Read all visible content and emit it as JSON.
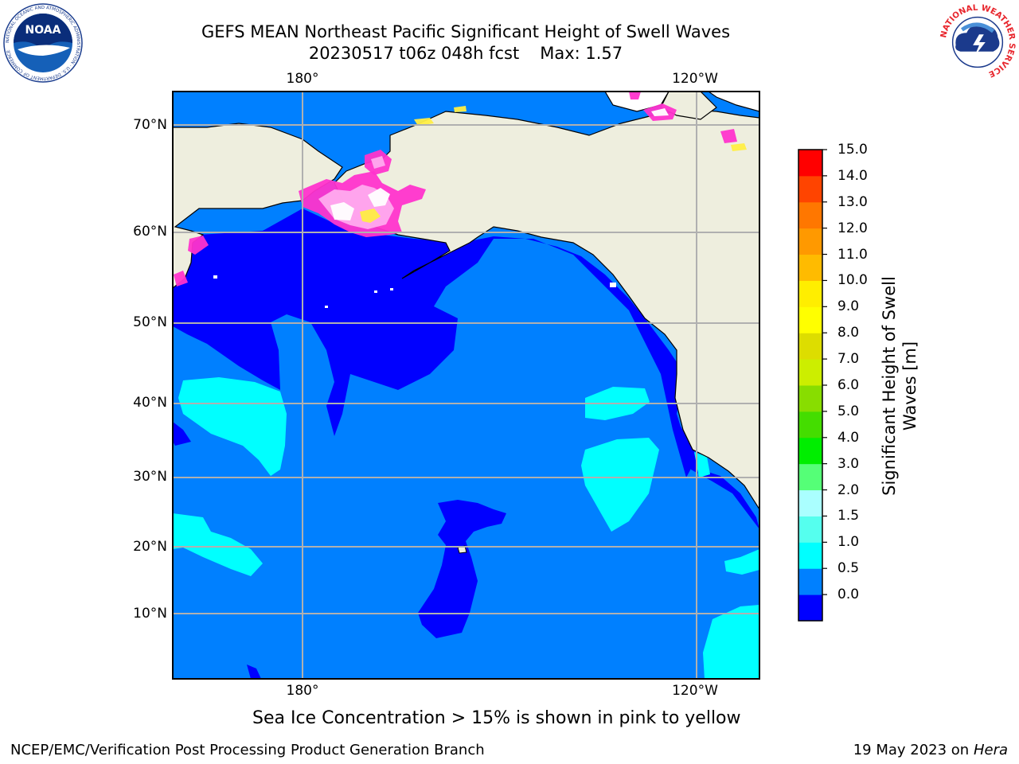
{
  "header": {
    "title_line1": "GEFS MEAN Northeast Pacific Significant Height of Swell Waves",
    "run_info": "20230517 t06z 048h fcst",
    "max_label": "Max: 1.57"
  },
  "logos": {
    "noaa": {
      "text": "NOAA",
      "ring_text": "NATIONAL OCEANIC AND ATMOSPHERIC ADMINISTRATION · U.S. DEPARTMENT OF COMMERCE"
    },
    "nws": {
      "ring_text": "NATIONAL WEATHER SERVICE"
    }
  },
  "map": {
    "lon_labels_top": [
      "180°",
      "120°W"
    ],
    "lon_labels_bottom": [
      "180°",
      "120°W"
    ],
    "lat_labels": [
      "70°N",
      "60°N",
      "50°N",
      "40°N",
      "30°N",
      "20°N",
      "10°N"
    ],
    "colors": {
      "land": "#eeeede",
      "ocean_0_0_5": "#0000ff",
      "ocean_1_0_1_5": "#0080ff",
      "ocean_1_5_2_0": "#00ffff",
      "grid": "#b0b0b0",
      "sea_ice": [
        "#ff33cc",
        "#ffaaee",
        "#ffee44"
      ]
    }
  },
  "colorbar": {
    "label": "Significant Height of Swell Waves [m]",
    "ticks": [
      "15.0",
      "14.0",
      "13.0",
      "12.0",
      "11.0",
      "10.0",
      "9.0",
      "8.0",
      "7.0",
      "6.0",
      "5.0",
      "4.0",
      "3.0",
      "2.0",
      "1.5",
      "1.0",
      "0.5",
      "0.0"
    ],
    "colors": [
      "#0000ff",
      "#0080ff",
      "#00ffff",
      "#55ffee",
      "#aaffff",
      "#55ff77",
      "#00ee00",
      "#44dd00",
      "#88dd00",
      "#ccee00",
      "#dddd00",
      "#ffff00",
      "#ffee00",
      "#ffbb00",
      "#ff9900",
      "#ff7700",
      "#ff4400",
      "#ff0000"
    ]
  },
  "notes": {
    "ice": "Sea Ice Concentration > 15% is shown in pink to yellow",
    "footer_left": "NCEP/EMC/Verification Post Processing Product Generation Branch",
    "footer_date": "19 May 2023 on",
    "footer_machine": "Hera"
  }
}
